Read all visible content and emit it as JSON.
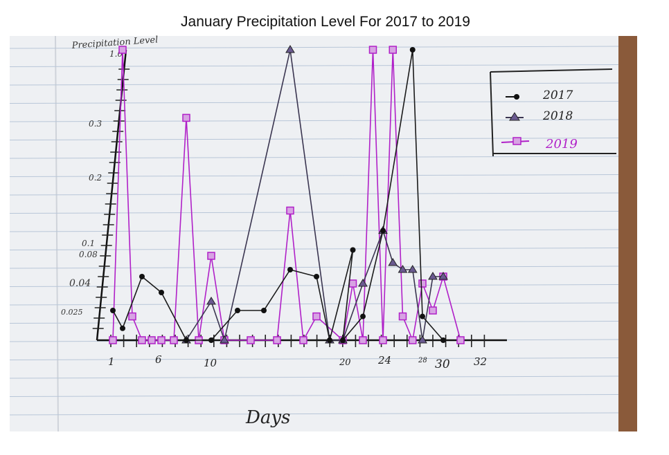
{
  "title": "January Precipitation Level For 2017 to 2019",
  "chart_data": {
    "type": "line",
    "title": "January Precipitation Level For 2017 to 2019",
    "xlabel": "Days",
    "ylabel": "Precipitation Level",
    "x_ticks": [
      "1",
      "6",
      "10",
      "20",
      "24",
      "28",
      "30",
      "32"
    ],
    "y_ticks": [
      "1.0",
      "0.3",
      "0.2",
      "0.1",
      "0.08",
      "0.04",
      "0.025"
    ],
    "legend_position": "top-right",
    "series": [
      {
        "name": "2017",
        "color": "#1a1a1a",
        "marker": "circle",
        "points": [
          [
            1,
            0.025
          ],
          [
            2,
            0.01
          ],
          [
            4,
            0.05
          ],
          [
            6,
            0.035
          ],
          [
            8,
            0
          ],
          [
            10,
            0
          ],
          [
            12,
            0.025
          ],
          [
            14,
            0.025
          ],
          [
            16,
            0.06
          ],
          [
            18,
            0.05
          ],
          [
            19,
            0
          ],
          [
            21,
            0.09
          ],
          [
            20,
            0
          ],
          [
            22,
            0.02
          ],
          [
            24,
            0.12
          ],
          [
            27,
            1.0
          ],
          [
            28,
            0.02
          ],
          [
            30,
            0
          ]
        ]
      },
      {
        "name": "2018",
        "color": "#3a3550",
        "marker": "triangle",
        "points": [
          [
            8,
            0
          ],
          [
            10,
            0.03
          ],
          [
            11,
            0
          ],
          [
            16,
            1.0
          ],
          [
            19,
            0
          ],
          [
            20,
            0
          ],
          [
            22,
            0.04
          ],
          [
            24,
            0.12
          ],
          [
            25,
            0.07
          ],
          [
            26,
            0.06
          ],
          [
            27,
            0.06
          ],
          [
            28,
            0
          ],
          [
            29,
            0.05
          ],
          [
            30,
            0.05
          ]
        ]
      },
      {
        "name": "2019",
        "color": "#b020c8",
        "marker": "square",
        "points": [
          [
            1,
            0
          ],
          [
            2,
            1.0
          ],
          [
            3,
            0.02
          ],
          [
            4,
            0
          ],
          [
            5,
            0
          ],
          [
            6,
            0
          ],
          [
            7,
            0
          ],
          [
            8,
            0.35
          ],
          [
            9,
            0
          ],
          [
            10,
            0.08
          ],
          [
            11,
            0
          ],
          [
            13,
            0
          ],
          [
            15,
            0
          ],
          [
            16,
            0.15
          ],
          [
            17,
            0
          ],
          [
            18,
            0.02
          ],
          [
            20,
            0
          ],
          [
            21,
            0.04
          ],
          [
            22,
            0
          ],
          [
            23,
            1.0
          ],
          [
            24,
            0
          ],
          [
            25,
            1.0
          ],
          [
            26,
            0.02
          ],
          [
            27,
            0
          ],
          [
            28,
            0.04
          ],
          [
            29,
            0.025
          ],
          [
            30,
            0.05
          ],
          [
            31,
            0
          ]
        ]
      }
    ]
  }
}
